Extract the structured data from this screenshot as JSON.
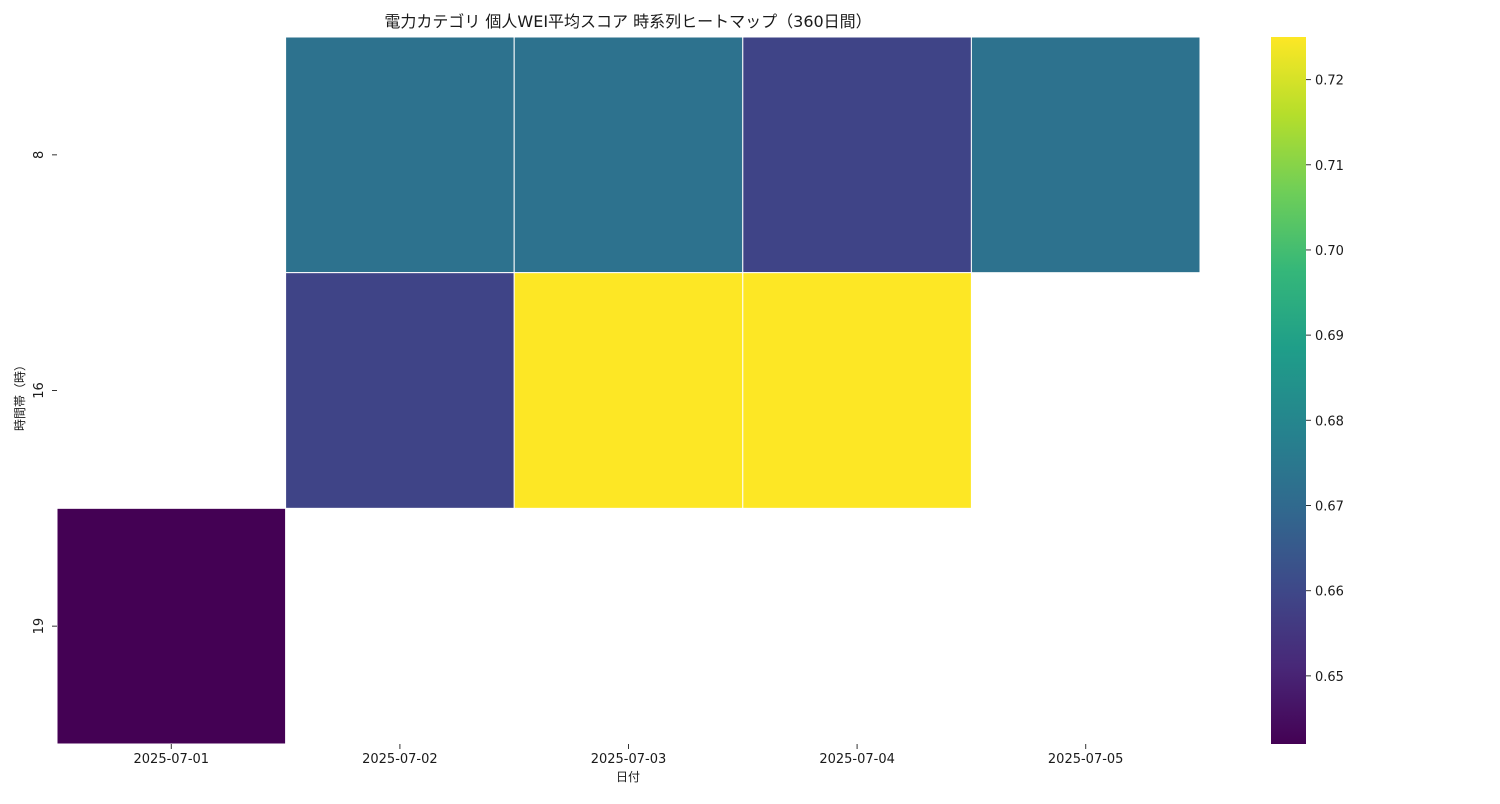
{
  "chart_data": {
    "type": "heatmap",
    "title": "電力カテゴリ 個人WEI平均スコア 時系列ヒートマップ（360日間）",
    "xlabel": "日付",
    "ylabel": "時間帯（時）",
    "x_categories": [
      "2025-07-01",
      "2025-07-02",
      "2025-07-03",
      "2025-07-04",
      "2025-07-05"
    ],
    "y_categories": [
      "8",
      "16",
      "19"
    ],
    "values": [
      [
        null,
        0.673,
        0.673,
        0.659,
        0.673
      ],
      [
        null,
        0.659,
        0.725,
        0.725,
        null
      ],
      [
        0.642,
        null,
        null,
        null,
        null
      ]
    ],
    "colorscale": "viridis",
    "colorbar": {
      "range": [
        0.642,
        0.725
      ],
      "ticks": [
        0.65,
        0.66,
        0.67,
        0.68,
        0.69,
        0.7,
        0.71,
        0.72
      ],
      "tick_labels": [
        "0.65",
        "0.66",
        "0.67",
        "0.68",
        "0.69",
        "0.70",
        "0.71",
        "0.72"
      ]
    },
    "grid": false,
    "legend": "colorbar-right"
  }
}
